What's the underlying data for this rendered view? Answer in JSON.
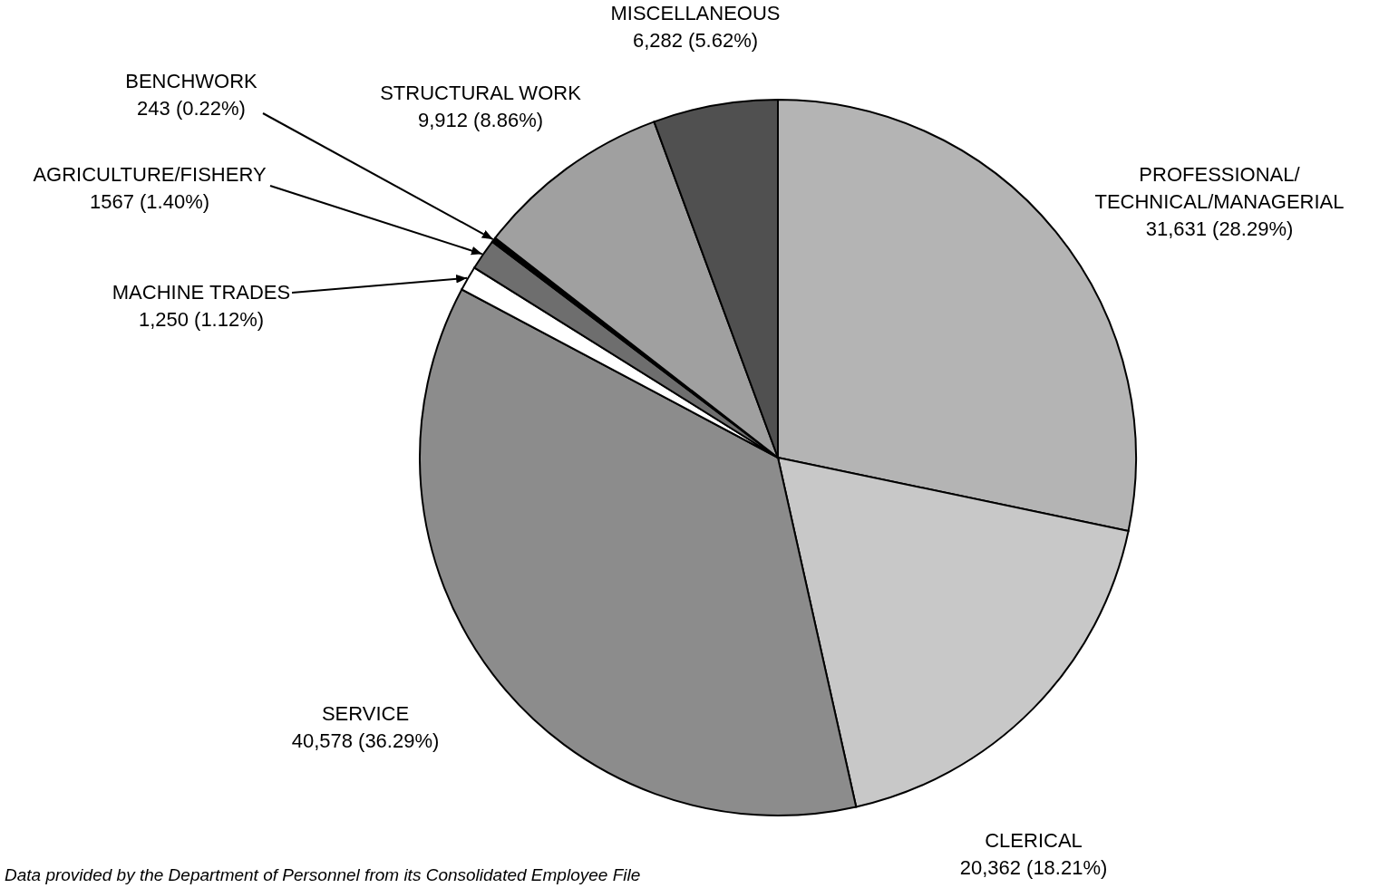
{
  "chart_data": {
    "type": "pie",
    "categories": [
      "PROFESSIONAL/TECHNICAL/MANAGERIAL",
      "CLERICAL",
      "SERVICE",
      "MACHINE TRADES",
      "AGRICULTURE/FISHERY",
      "BENCHWORK",
      "STRUCTURAL WORK",
      "MISCELLANEOUS"
    ],
    "values": [
      31631,
      20362,
      40578,
      1250,
      1567,
      243,
      9912,
      6282
    ],
    "value_labels": [
      "31,631 (28.29%)",
      "20,362 (18.21%)",
      "40,578 (36.29%)",
      "1,250 (1.12%)",
      "1567 (1.40%)",
      "243 (0.22%)",
      "9,912 (8.86%)",
      "6,282 (5.62%)"
    ],
    "colors": [
      "#b4b4b4",
      "#c8c8c8",
      "#8c8c8c",
      "#ffffff",
      "#6e6e6e",
      "#000000",
      "#a0a0a0",
      "#505050"
    ],
    "annotations": [
      "Data provided by the Department of Personnel from its Consolidated Employee File"
    ]
  }
}
